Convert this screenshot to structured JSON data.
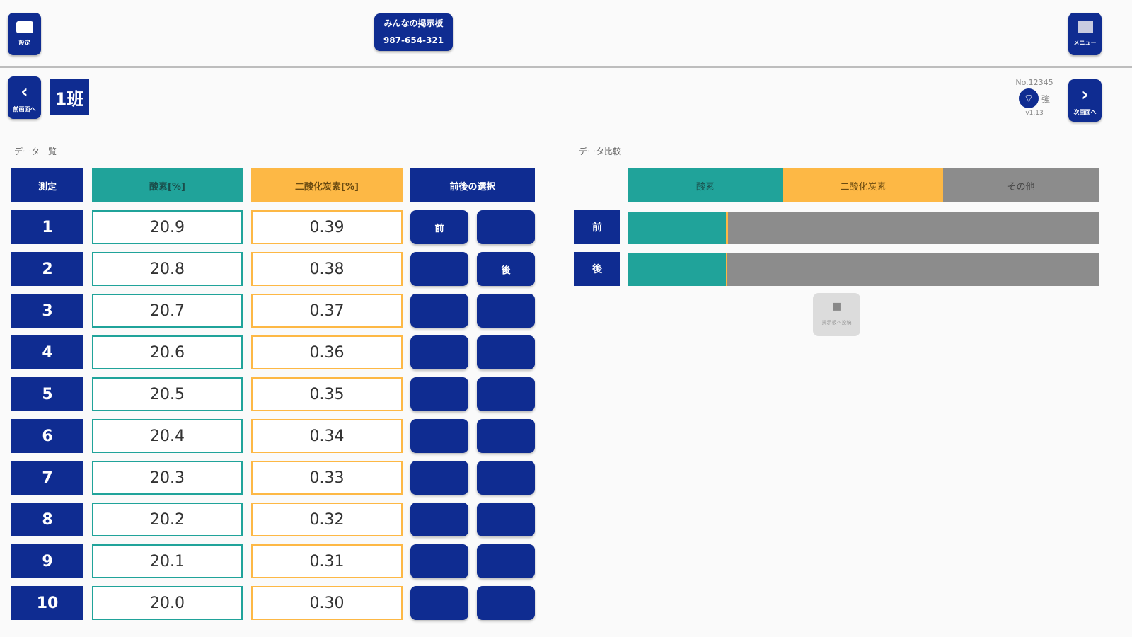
{
  "header": {
    "settings_label": "設定",
    "board_title": "みんなの掲示板",
    "board_number": "987-654-321",
    "menu_label": "メニュー"
  },
  "nav": {
    "prev_label": "前画面へ",
    "next_label": "次画面へ",
    "group": "1班",
    "device_no": "No.12345",
    "signal": "強",
    "version": "v1.13"
  },
  "data_list": {
    "title": "データ一覧",
    "headers": {
      "measure": "測定",
      "oxygen": "酸素[%]",
      "co2": "二酸化炭素[%]",
      "select": "前後の選択"
    },
    "rows": [
      {
        "n": "1",
        "ox": "20.9",
        "co2": "0.39",
        "before": "前",
        "after": ""
      },
      {
        "n": "2",
        "ox": "20.8",
        "co2": "0.38",
        "before": "",
        "after": "後"
      },
      {
        "n": "3",
        "ox": "20.7",
        "co2": "0.37",
        "before": "",
        "after": ""
      },
      {
        "n": "4",
        "ox": "20.6",
        "co2": "0.36",
        "before": "",
        "after": ""
      },
      {
        "n": "5",
        "ox": "20.5",
        "co2": "0.35",
        "before": "",
        "after": ""
      },
      {
        "n": "6",
        "ox": "20.4",
        "co2": "0.34",
        "before": "",
        "after": ""
      },
      {
        "n": "7",
        "ox": "20.3",
        "co2": "0.33",
        "before": "",
        "after": ""
      },
      {
        "n": "8",
        "ox": "20.2",
        "co2": "0.32",
        "before": "",
        "after": ""
      },
      {
        "n": "9",
        "ox": "20.1",
        "co2": "0.31",
        "before": "",
        "after": ""
      },
      {
        "n": "10",
        "ox": "20.0",
        "co2": "0.30",
        "before": "",
        "after": ""
      }
    ]
  },
  "compare": {
    "title": "データ比較",
    "legend": {
      "oxygen": "酸素",
      "co2": "二酸化炭素",
      "other": "その他"
    },
    "rows": [
      {
        "label": "前",
        "oxygen": 20.9,
        "co2": 0.39
      },
      {
        "label": "後",
        "oxygen": 20.8,
        "co2": 0.38
      }
    ],
    "post_label": "掲示板へ投稿"
  },
  "colors": {
    "navy": "#0f2c91",
    "oxygen": "#20a39a",
    "co2": "#fdb845",
    "other": "#8c8c8c"
  }
}
